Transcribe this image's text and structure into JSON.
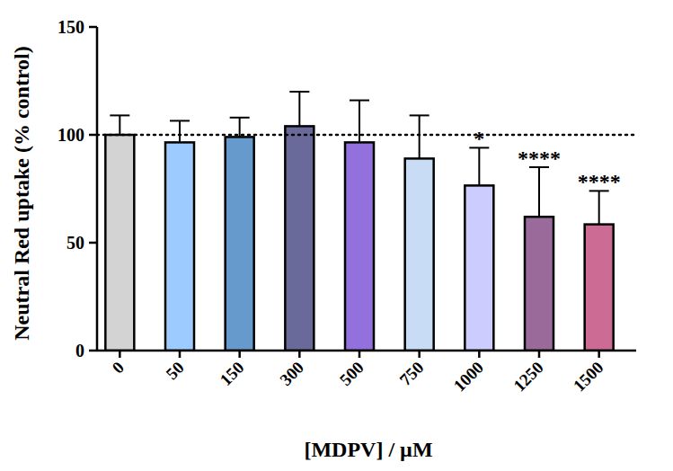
{
  "chart_data": {
    "type": "bar",
    "x_label": "[MDPV] / µM",
    "y_label": "Neutral Red uptake (% control)",
    "categories": [
      "0",
      "50",
      "150",
      "300",
      "500",
      "750",
      "1000",
      "1250",
      "1500"
    ],
    "values": [
      100,
      96.5,
      99,
      104,
      96.5,
      89,
      76.5,
      62,
      58.5
    ],
    "errors": [
      9,
      10,
      9,
      16,
      19.5,
      20,
      17.5,
      23,
      15.5
    ],
    "colors": [
      "#d3d3d3",
      "#9ecbff",
      "#6699cc",
      "#6a6a9a",
      "#9370db",
      "#c8dcf5",
      "#ccccff",
      "#9a6a9a",
      "#cc6b93"
    ],
    "reference_line": 100,
    "annotations": [
      {
        "category": "1000",
        "text": "*"
      },
      {
        "category": "1250",
        "text": "****"
      },
      {
        "category": "1500",
        "text": "****"
      }
    ],
    "ylim": [
      0,
      150
    ],
    "yticks": [
      0,
      50,
      100,
      150
    ],
    "grid": false
  }
}
